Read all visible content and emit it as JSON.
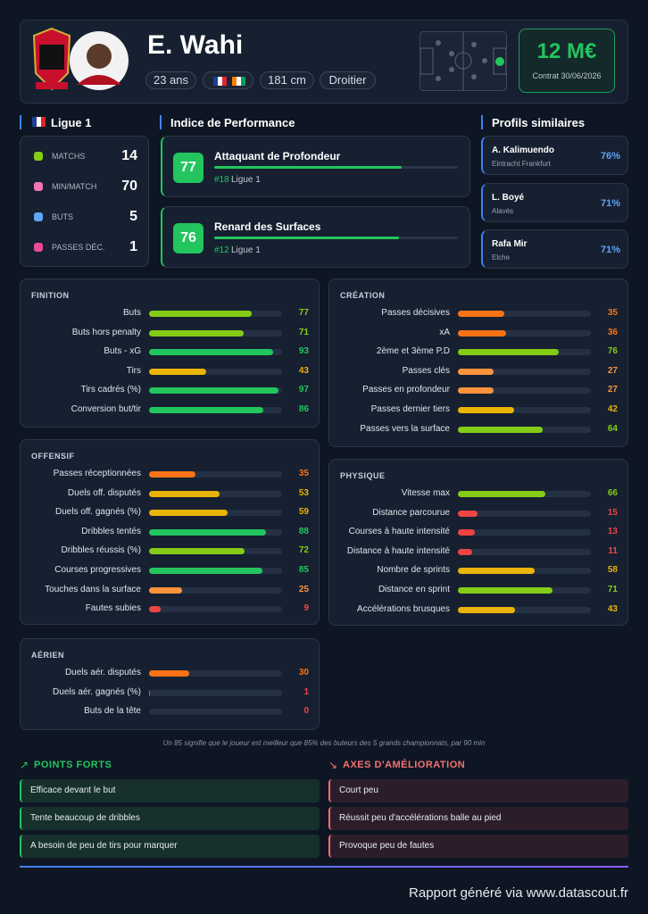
{
  "header": {
    "name": "E. Wahi",
    "tags": [
      "23 ans",
      "181 cm",
      "Droitier"
    ],
    "value": "12 M€",
    "contract": "Contrat 30/06/2026"
  },
  "league": {
    "title": "Ligue 1",
    "stats": [
      {
        "label": "MATCHS",
        "value": 14
      },
      {
        "label": "MIN/MATCH",
        "value": 70
      },
      {
        "label": "BUTS",
        "value": 5
      },
      {
        "label": "PASSES DÉC.",
        "value": 1
      }
    ]
  },
  "performance": {
    "title": "Indice de Performance",
    "items": [
      {
        "score": 77,
        "title": "Attaquant de Profondeur",
        "rank": "#18",
        "league": "Ligue 1"
      },
      {
        "score": 76,
        "title": "Renard des Surfaces",
        "rank": "#12",
        "league": "Ligue 1"
      }
    ]
  },
  "similar": {
    "title": "Profils similaires",
    "items": [
      {
        "name": "A. Kalimuendo",
        "club": "Eintracht Frankfurt",
        "match": "76%"
      },
      {
        "name": "L. Boyé",
        "club": "Alavés",
        "match": "71%"
      },
      {
        "name": "Rafa Mir",
        "club": "Elche",
        "match": "71%"
      }
    ]
  },
  "sections": [
    {
      "title": "FINITION",
      "metrics": [
        {
          "label": "Buts",
          "value": 77
        },
        {
          "label": "Buts hors penalty",
          "value": 71
        },
        {
          "label": "Buts - xG",
          "value": 93
        },
        {
          "label": "Tirs",
          "value": 43
        },
        {
          "label": "Tirs cadrés (%)",
          "value": 97
        },
        {
          "label": "Conversion but/tir",
          "value": 86
        }
      ]
    },
    {
      "title": "CRÉATION",
      "metrics": [
        {
          "label": "Passes décisives",
          "value": 35
        },
        {
          "label": "xA",
          "value": 36
        },
        {
          "label": "2ème et 3ème P.D",
          "value": 76
        },
        {
          "label": "Passes clés",
          "value": 27
        },
        {
          "label": "Passes en profondeur",
          "value": 27
        },
        {
          "label": "Passes dernier tiers",
          "value": 42
        },
        {
          "label": "Passes vers la surface",
          "value": 64
        }
      ]
    },
    {
      "title": "OFFENSIF",
      "metrics": [
        {
          "label": "Passes réceptionnées",
          "value": 35
        },
        {
          "label": "Duels off. disputés",
          "value": 53
        },
        {
          "label": "Duels off. gagnés (%)",
          "value": 59
        },
        {
          "label": "Dribbles tentés",
          "value": 88
        },
        {
          "label": "Dribbles réussis (%)",
          "value": 72
        },
        {
          "label": "Courses progressives",
          "value": 85
        },
        {
          "label": "Touches dans la surface",
          "value": 25
        },
        {
          "label": "Fautes subies",
          "value": 9
        }
      ]
    },
    {
      "title": "PHYSIQUE",
      "metrics": [
        {
          "label": "Vitesse max",
          "value": 66
        },
        {
          "label": "Distance parcourue",
          "value": 15
        },
        {
          "label": "Courses à haute intensité",
          "value": 13
        },
        {
          "label": "Distance à haute intensité",
          "value": 11
        },
        {
          "label": "Nombre de sprints",
          "value": 58
        },
        {
          "label": "Distance en sprint",
          "value": 71
        },
        {
          "label": "Accélérations brusques",
          "value": 43
        }
      ]
    },
    {
      "title": "AÉRIEN",
      "metrics": [
        {
          "label": "Duels aér. disputés",
          "value": 30
        },
        {
          "label": "Duels aér. gagnés (%)",
          "value": 1
        },
        {
          "label": "Buts de la tête",
          "value": 0
        }
      ]
    }
  ],
  "note": "Un 85 signifie que le joueur est meilleur que 85% des buteurs des 5 grands championnats, par 90 min",
  "strengths": {
    "title": "POINTS FORTS",
    "items": [
      "Efficace devant le but",
      "Tente beaucoup de dribbles",
      "A besoin de peu de tirs pour marquer"
    ]
  },
  "weaknesses": {
    "title": "AXES D'AMÉLIORATION",
    "items": [
      "Court peu",
      "Réussit peu d'accélérations balle au pied",
      "Provoque peu de fautes"
    ]
  },
  "footer": "Rapport généré via www.datascout.fr"
}
